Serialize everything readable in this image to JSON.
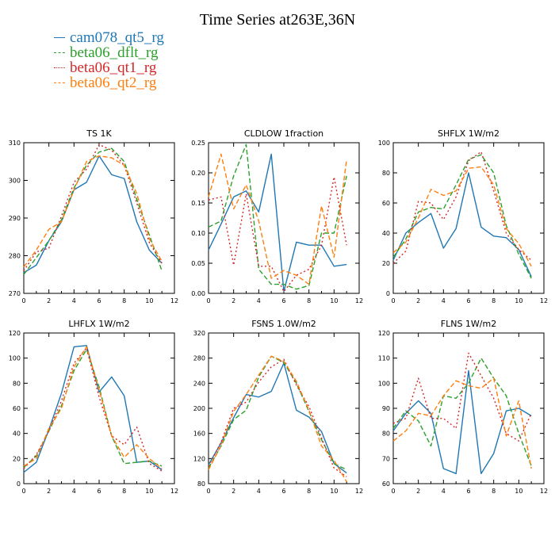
{
  "title": "Time Series at263E,36N",
  "series_colors": {
    "cam078_qt5_rg": "#1f77b4",
    "beta06_dflt_rg": "#2ca02c",
    "beta06_qt1_rg": "#d62728",
    "beta06_qt2_rg": "#ff7f0e"
  },
  "legend": [
    {
      "name": "cam078_qt5_rg",
      "color": "#1f77b4"
    },
    {
      "name": "beta06_dflt_rg",
      "color": "#2ca02c"
    },
    {
      "name": "beta06_qt1_rg",
      "color": "#d62728"
    },
    {
      "name": "beta06_qt2_rg",
      "color": "#ff7f0e"
    }
  ],
  "chart_data": [
    {
      "type": "line",
      "title": "TS   1K",
      "xlim": [
        0,
        12
      ],
      "ylim": [
        270,
        310
      ],
      "xticks": [
        0,
        2,
        4,
        6,
        8,
        10,
        12
      ],
      "yticks": [
        270,
        280,
        290,
        300,
        310
      ],
      "x": [
        0,
        1,
        2,
        3,
        4,
        5,
        6,
        7,
        8,
        9,
        10,
        11
      ],
      "series": [
        {
          "name": "cam078_qt5_rg",
          "values": [
            275.5,
            277.5,
            284,
            289,
            297.5,
            299.5,
            306.5,
            301.5,
            300.5,
            289,
            281.5,
            278
          ]
        },
        {
          "name": "beta06_dflt_rg",
          "values": [
            275,
            279.5,
            284,
            289.5,
            298,
            304,
            307.5,
            308.5,
            305,
            295,
            285.5,
            276
          ]
        },
        {
          "name": "beta06_qt1_rg",
          "values": [
            276,
            281,
            282,
            290.5,
            299.5,
            303,
            309.5,
            308,
            304,
            294,
            283.5,
            278
          ]
        },
        {
          "name": "beta06_qt2_rg",
          "values": [
            277,
            281.5,
            287,
            289,
            297.5,
            305,
            306.5,
            306,
            304,
            296.5,
            284.5,
            278.5
          ]
        }
      ]
    },
    {
      "type": "line",
      "title": "CLDLOW   1fraction",
      "xlim": [
        0,
        12
      ],
      "ylim": [
        0,
        0.25
      ],
      "xticks": [
        0,
        2,
        4,
        6,
        8,
        10,
        12
      ],
      "yticks": [
        0.0,
        0.05,
        0.1,
        0.15,
        0.2,
        0.25
      ],
      "ytick_labels": [
        "0.00",
        "0.05",
        "0.10",
        "0.15",
        "0.20",
        "0.25"
      ],
      "x": [
        0,
        1,
        2,
        3,
        4,
        5,
        6,
        7,
        8,
        9,
        10,
        11
      ],
      "series": [
        {
          "name": "cam078_qt5_rg",
          "values": [
            0.072,
            0.115,
            0.16,
            0.17,
            0.135,
            0.231,
            0.003,
            0.085,
            0.08,
            0.08,
            0.045,
            0.048
          ]
        },
        {
          "name": "beta06_dflt_rg",
          "values": [
            0.11,
            0.12,
            0.195,
            0.247,
            0.04,
            0.015,
            0.015,
            0.007,
            0.013,
            0.1,
            0.1,
            0.195
          ]
        },
        {
          "name": "beta06_qt1_rg",
          "values": [
            0.155,
            0.16,
            0.047,
            0.165,
            0.045,
            0.045,
            0.003,
            0.03,
            0.04,
            0.08,
            0.193,
            0.08
          ]
        },
        {
          "name": "beta06_qt2_rg",
          "values": [
            0.16,
            0.231,
            0.14,
            0.18,
            0.12,
            0.025,
            0.038,
            0.03,
            0.015,
            0.145,
            0.06,
            0.222
          ]
        }
      ]
    },
    {
      "type": "line",
      "title": "SHFLX   1W/m2",
      "xlim": [
        0,
        12
      ],
      "ylim": [
        0,
        100
      ],
      "xticks": [
        0,
        2,
        4,
        6,
        8,
        10,
        12
      ],
      "yticks": [
        0,
        20,
        40,
        60,
        80,
        100
      ],
      "x": [
        0,
        1,
        2,
        3,
        4,
        5,
        6,
        7,
        8,
        9,
        10,
        11
      ],
      "series": [
        {
          "name": "cam078_qt5_rg",
          "values": [
            22,
            40,
            47,
            53,
            30,
            43,
            80,
            44,
            38,
            37,
            29,
            11
          ]
        },
        {
          "name": "beta06_dflt_rg",
          "values": [
            24,
            36,
            54,
            57,
            56,
            72,
            89,
            92,
            80,
            45,
            26,
            10
          ]
        },
        {
          "name": "beta06_qt1_rg",
          "values": [
            20,
            28,
            61,
            60,
            49,
            64,
            88,
            94,
            68,
            40,
            29,
            22
          ]
        },
        {
          "name": "beta06_qt2_rg",
          "values": [
            27,
            34,
            50,
            69,
            65,
            68,
            83,
            84,
            72,
            43,
            33,
            18
          ]
        }
      ]
    },
    {
      "type": "line",
      "title": "LHFLX   1W/m2",
      "xlim": [
        0,
        12
      ],
      "ylim": [
        0,
        120
      ],
      "xticks": [
        0,
        2,
        4,
        6,
        8,
        10,
        12
      ],
      "yticks": [
        0,
        20,
        40,
        60,
        80,
        100,
        120
      ],
      "x": [
        0,
        1,
        2,
        3,
        4,
        5,
        6,
        7,
        8,
        9,
        10,
        11
      ],
      "series": [
        {
          "name": "cam078_qt5_rg",
          "values": [
            9,
            17,
            43,
            72,
            109,
            110,
            73,
            85,
            70,
            17,
            18,
            11
          ]
        },
        {
          "name": "beta06_dflt_rg",
          "values": [
            13,
            22,
            42,
            62,
            90,
            107,
            77,
            38,
            16,
            17,
            18,
            14
          ]
        },
        {
          "name": "beta06_qt1_rg",
          "values": [
            12,
            23,
            42,
            66,
            96,
            108,
            69,
            38,
            31,
            45,
            16,
            10
          ]
        },
        {
          "name": "beta06_qt2_rg",
          "values": [
            14,
            20,
            44,
            60,
            93,
            109,
            75,
            38,
            21,
            31,
            20,
            12
          ]
        }
      ]
    },
    {
      "type": "line",
      "title": "FSNS   1.0W/m2",
      "xlim": [
        0,
        12
      ],
      "ylim": [
        80,
        320
      ],
      "xticks": [
        0,
        2,
        4,
        6,
        8,
        10,
        12
      ],
      "yticks": [
        80,
        120,
        160,
        200,
        240,
        280,
        320
      ],
      "x": [
        0,
        1,
        2,
        3,
        4,
        5,
        6,
        7,
        8,
        9,
        10,
        11
      ],
      "series": [
        {
          "name": "cam078_qt5_rg",
          "values": [
            110,
            145,
            185,
            222,
            218,
            227,
            272,
            197,
            186,
            163,
            112,
            97
          ]
        },
        {
          "name": "beta06_dflt_rg",
          "values": [
            105,
            140,
            182,
            197,
            250,
            283,
            273,
            240,
            195,
            150,
            112,
            102
          ]
        },
        {
          "name": "beta06_qt1_rg",
          "values": [
            108,
            146,
            200,
            210,
            242,
            266,
            278,
            237,
            203,
            153,
            105,
            91
          ]
        },
        {
          "name": "beta06_qt2_rg",
          "values": [
            102,
            141,
            195,
            222,
            253,
            283,
            275,
            243,
            197,
            140,
            117,
            83
          ]
        }
      ]
    },
    {
      "type": "line",
      "title": "FLNS   1W/m2",
      "xlim": [
        0,
        12
      ],
      "ylim": [
        60,
        120
      ],
      "xticks": [
        0,
        2,
        4,
        6,
        8,
        10,
        12
      ],
      "yticks": [
        60,
        70,
        80,
        90,
        100,
        110,
        120
      ],
      "x": [
        0,
        1,
        2,
        3,
        4,
        5,
        6,
        7,
        8,
        9,
        10,
        11
      ],
      "series": [
        {
          "name": "cam078_qt5_rg",
          "values": [
            81,
            88,
            93,
            88,
            66,
            64,
            105,
            64,
            72,
            89,
            90,
            87
          ]
        },
        {
          "name": "beta06_dflt_rg",
          "values": [
            82,
            89,
            85,
            75,
            95,
            94,
            100,
            110,
            102,
            95,
            80,
            67
          ]
        },
        {
          "name": "beta06_qt1_rg",
          "values": [
            84,
            86,
            102,
            86,
            86,
            82,
            112,
            103,
            94,
            80,
            77,
            88
          ]
        },
        {
          "name": "beta06_qt2_rg",
          "values": [
            77,
            81,
            88,
            87,
            95,
            101,
            99,
            98,
            102,
            79,
            93,
            66
          ]
        }
      ]
    }
  ]
}
